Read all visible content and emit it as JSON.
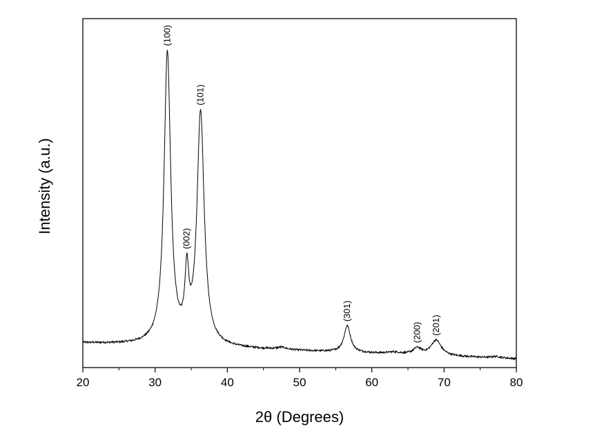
{
  "chart_data": {
    "type": "line",
    "xlabel": "2θ (Degrees)",
    "ylabel": "Intensity (a.u.)",
    "xlim": [
      20,
      80
    ],
    "ylim": [
      0,
      100
    ],
    "x_ticks": [
      "20",
      "30",
      "40",
      "50",
      "60",
      "70",
      "80"
    ],
    "y_ticks_shown": false,
    "grid": false,
    "legend": "none",
    "line_color": "#000000",
    "baseline": {
      "start": 7.0,
      "slope_per_degree": -0.075
    },
    "peaks": [
      {
        "label": "(100)",
        "x": 31.7,
        "height": 83.5,
        "width": 0.55
      },
      {
        "label": "(002)",
        "x": 34.4,
        "height": 17.5,
        "width": 0.32
      },
      {
        "label": "(101)",
        "x": 36.3,
        "height": 66.5,
        "width": 0.6
      },
      {
        "label": "(301)",
        "x": 56.6,
        "height": 7.6,
        "width": 0.55
      },
      {
        "label": "(200)",
        "x": 66.3,
        "height": 1.8,
        "width": 0.7
      },
      {
        "label": "(201)",
        "x": 68.9,
        "height": 4.4,
        "width": 0.85
      }
    ],
    "minor_bumps": [
      {
        "x": 47.5,
        "height": 0.6,
        "width": 0.8
      },
      {
        "x": 63.0,
        "height": 0.5,
        "width": 1.2
      },
      {
        "x": 77.2,
        "height": 0.4,
        "width": 0.8
      }
    ]
  }
}
